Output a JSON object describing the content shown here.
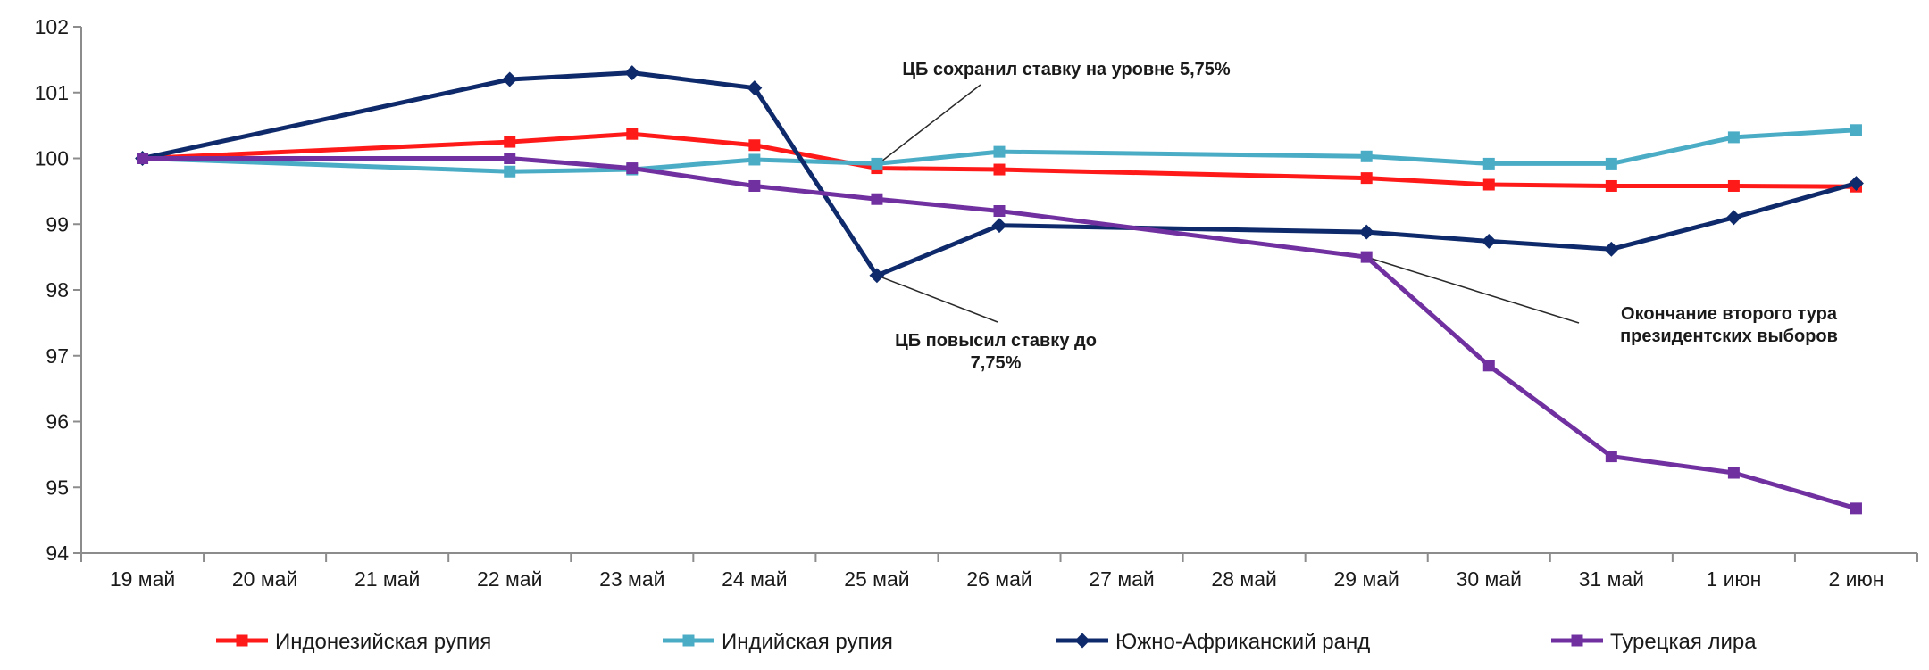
{
  "chart_data": {
    "type": "line",
    "categories": [
      "19 май",
      "20 май",
      "21 май",
      "22 май",
      "23 май",
      "24 май",
      "25 май",
      "26 май",
      "27 май",
      "28 май",
      "29 май",
      "30 май",
      "31 май",
      "1 июн",
      "2 июн"
    ],
    "ylim": [
      94,
      102
    ],
    "yticks": [
      94,
      95,
      96,
      97,
      98,
      99,
      100,
      101,
      102
    ],
    "grid": false,
    "legend_position": "bottom",
    "series": [
      {
        "name": "Индонезийская рупия",
        "color": "#ff1a1a",
        "marker": "square",
        "values": [
          100.0,
          null,
          null,
          100.25,
          100.37,
          100.2,
          99.85,
          99.83,
          null,
          null,
          99.7,
          99.6,
          99.58,
          99.58,
          99.57
        ]
      },
      {
        "name": "Индийская рупия",
        "color": "#4bacc6",
        "marker": "square",
        "values": [
          100.0,
          null,
          null,
          99.8,
          99.83,
          99.98,
          99.92,
          100.1,
          null,
          null,
          100.03,
          99.92,
          99.92,
          100.32,
          100.43
        ]
      },
      {
        "name": "Южно-Африканский ранд",
        "color": "#0f2a6b",
        "marker": "diamond",
        "values": [
          100.0,
          null,
          null,
          101.2,
          101.3,
          101.07,
          98.22,
          98.98,
          null,
          null,
          98.88,
          98.74,
          98.62,
          99.1,
          99.62
        ]
      },
      {
        "name": "Турецкая лира",
        "color": "#7030a0",
        "marker": "square",
        "values": [
          100.0,
          null,
          null,
          100.0,
          99.85,
          99.58,
          99.38,
          99.2,
          null,
          null,
          98.5,
          96.85,
          95.47,
          95.22,
          94.68
        ]
      }
    ],
    "annotations": [
      {
        "lines": [
          "ЦБ сохранил ставку на уровне 5,75%"
        ],
        "x": "25 май",
        "y": 99.9
      },
      {
        "lines": [
          "ЦБ повысил ставку до",
          "7,75%"
        ],
        "x": "25 май",
        "y": 98.22
      },
      {
        "lines": [
          "Окончание второго тура",
          "президентских выборов"
        ],
        "x": "29 май",
        "y": 98.5
      }
    ]
  }
}
